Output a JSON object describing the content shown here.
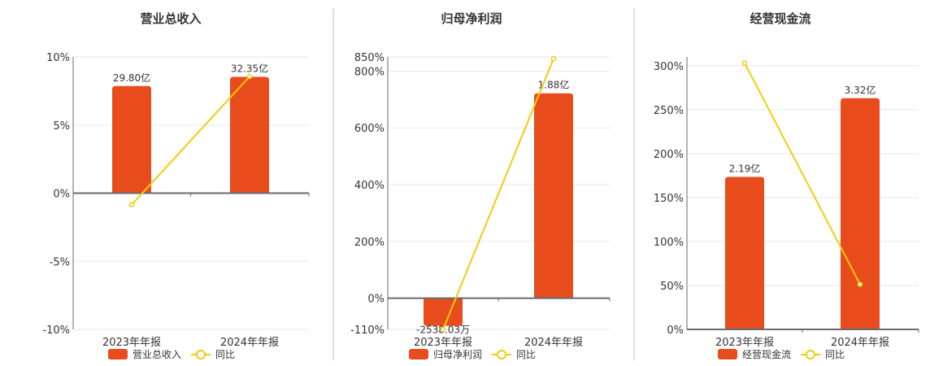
{
  "colors": {
    "bar": "#e84c1c",
    "line": "#f2cc0c",
    "grid": "#e3e7f0",
    "axis": "#666a72",
    "divider": "#bfbfbf"
  },
  "chart_data": [
    {
      "type": "bar+line",
      "title": "营业总收入",
      "categories": [
        "2023年年报",
        "2024年年报"
      ],
      "bar_series": {
        "name": "营业总收入",
        "values": [
          29.8,
          32.35
        ],
        "unit": "亿",
        "labels": [
          "29.80亿",
          "32.35亿"
        ]
      },
      "line_series": {
        "name": "同比",
        "values": [
          -0.85,
          8.56
        ],
        "unit": "%"
      },
      "y_ticks": [
        "10%",
        "5%",
        "0%",
        "-5%",
        "-10%"
      ],
      "ylim": [
        -10,
        10
      ],
      "grid": true,
      "legend": "bottom"
    },
    {
      "type": "bar+line",
      "title": "归母净利润",
      "categories": [
        "2023年年报",
        "2024年年报"
      ],
      "bar_series": {
        "name": "归母净利润",
        "values": [
          -0.253803,
          1.88
        ],
        "unit": "亿",
        "labels": [
          "-2538.03万",
          "1.88亿"
        ]
      },
      "line_series": {
        "name": "同比",
        "values": [
          -110,
          844
        ],
        "unit": "%"
      },
      "y_ticks": [
        "850%",
        "800%",
        "600%",
        "400%",
        "200%",
        "0%",
        "-110%"
      ],
      "ylim": [
        -110,
        850
      ],
      "grid": true,
      "legend": "bottom"
    },
    {
      "type": "bar+line",
      "title": "经营现金流",
      "categories": [
        "2023年年报",
        "2024年年报"
      ],
      "bar_series": {
        "name": "经营现金流",
        "values": [
          2.19,
          3.32
        ],
        "unit": "亿",
        "labels": [
          "2.19亿",
          "3.32亿"
        ]
      },
      "line_series": {
        "name": "同比",
        "values": [
          303,
          51.3
        ],
        "unit": "%"
      },
      "y_ticks": [
        "300%",
        "250%",
        "200%",
        "150%",
        "100%",
        "50%",
        "0%"
      ],
      "ylim": [
        0,
        310
      ],
      "grid": true,
      "legend": "bottom"
    }
  ]
}
